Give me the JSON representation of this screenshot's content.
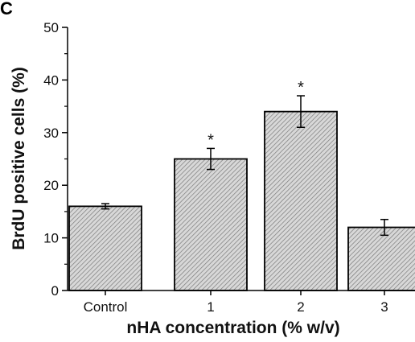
{
  "panel_label": "C",
  "chart_data": {
    "type": "bar",
    "categories": [
      "Control",
      "1",
      "2",
      "3"
    ],
    "values": [
      16,
      25,
      34,
      12
    ],
    "errors": [
      0.5,
      2,
      3,
      1.5
    ],
    "significance": [
      "",
      "*",
      "*",
      ""
    ],
    "xlabel": "nHA concentration (% w/v)",
    "ylabel": "BrdU positive cells (%)",
    "ylim": [
      0,
      50
    ],
    "yticks": [
      0,
      10,
      20,
      30,
      40,
      50
    ],
    "bar_fill": "hatched-gray",
    "grid": false
  }
}
